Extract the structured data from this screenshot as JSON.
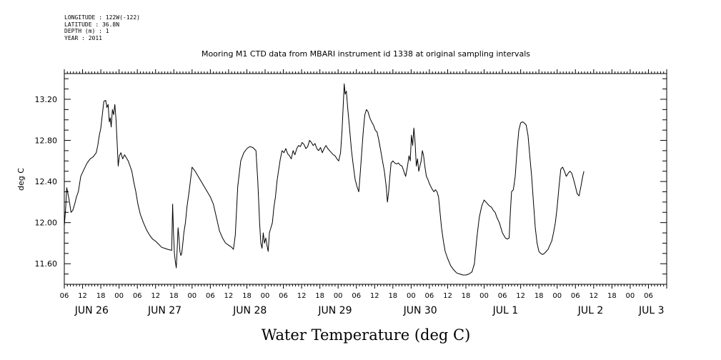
{
  "header": {
    "longitude": "LONGITUDE : 122W(-122)",
    "latitude": "LATITUDE : 36.8N",
    "depth": "DEPTH (m) : 1",
    "year": "YEAR : 2011"
  },
  "chart_data": {
    "type": "line",
    "title": "Mooring M1 CTD data from MBARI instrument id 1338 at original sampling intervals",
    "xlabel": "Water Temperature (deg C)",
    "ylabel": "deg C",
    "ylim": [
      11.4,
      13.45
    ],
    "xlim_hours": [
      0,
      198
    ],
    "x_unit": "hours since 06:00 JUN 26",
    "yticks": [
      11.6,
      12.0,
      12.4,
      12.8,
      13.2
    ],
    "ytick_labels": [
      "11.60",
      "12.00",
      "12.40",
      "12.80",
      "13.20"
    ],
    "hour_tick_labels": [
      "06",
      "12",
      "18",
      "00",
      "06",
      "12",
      "18",
      "00",
      "06",
      "12",
      "18",
      "00",
      "06",
      "12",
      "18",
      "00",
      "06",
      "12",
      "18",
      "00",
      "06",
      "12",
      "18",
      "00",
      "06",
      "12",
      "18",
      "00",
      "06",
      "12",
      "18",
      "00",
      "06"
    ],
    "day_labels": [
      {
        "label": "JUN 26",
        "hour": 9
      },
      {
        "label": "JUN 27",
        "hour": 33
      },
      {
        "label": "JUN 28",
        "hour": 61
      },
      {
        "label": "JUN 29",
        "hour": 89
      },
      {
        "label": "JUN 30",
        "hour": 117
      },
      {
        "label": "JUL  1",
        "hour": 145
      },
      {
        "label": "JUL  2",
        "hour": 173
      },
      {
        "label": "JUL  3",
        "hour": 193
      }
    ],
    "grid": false,
    "series": [
      {
        "color": "#000000",
        "points": [
          [
            0.0,
            11.97
          ],
          [
            0.4,
            12.12
          ],
          [
            0.8,
            12.34
          ],
          [
            1.2,
            12.28
          ],
          [
            1.6,
            12.22
          ],
          [
            2.2,
            12.1
          ],
          [
            2.8,
            12.12
          ],
          [
            3.4,
            12.18
          ],
          [
            4.0,
            12.25
          ],
          [
            4.6,
            12.3
          ],
          [
            5.4,
            12.45
          ],
          [
            6.5,
            12.52
          ],
          [
            7.5,
            12.58
          ],
          [
            8.5,
            12.62
          ],
          [
            9.5,
            12.64
          ],
          [
            10.5,
            12.68
          ],
          [
            11.0,
            12.75
          ],
          [
            11.5,
            12.85
          ],
          [
            12.0,
            12.92
          ],
          [
            12.5,
            13.05
          ],
          [
            13.0,
            13.18
          ],
          [
            13.6,
            13.19
          ],
          [
            14.0,
            13.12
          ],
          [
            14.4,
            13.15
          ],
          [
            14.8,
            12.98
          ],
          [
            15.1,
            13.02
          ],
          [
            15.4,
            12.93
          ],
          [
            15.8,
            13.1
          ],
          [
            16.2,
            13.05
          ],
          [
            16.6,
            13.15
          ],
          [
            17.0,
            13.0
          ],
          [
            17.4,
            12.75
          ],
          [
            17.7,
            12.55
          ],
          [
            18.1,
            12.65
          ],
          [
            18.6,
            12.68
          ],
          [
            19.2,
            12.62
          ],
          [
            19.8,
            12.66
          ],
          [
            20.4,
            12.63
          ],
          [
            21.0,
            12.6
          ],
          [
            21.6,
            12.55
          ],
          [
            22.2,
            12.5
          ],
          [
            22.8,
            12.4
          ],
          [
            23.5,
            12.3
          ],
          [
            24.2,
            12.18
          ],
          [
            25.0,
            12.08
          ],
          [
            26.0,
            12.0
          ],
          [
            27.0,
            11.93
          ],
          [
            28.0,
            11.88
          ],
          [
            29.0,
            11.84
          ],
          [
            30.0,
            11.82
          ],
          [
            31.0,
            11.79
          ],
          [
            32.0,
            11.76
          ],
          [
            33.0,
            11.75
          ],
          [
            34.0,
            11.74
          ],
          [
            35.3,
            11.73
          ],
          [
            35.6,
            12.18
          ],
          [
            35.9,
            11.9
          ],
          [
            36.2,
            11.7
          ],
          [
            36.5,
            11.62
          ],
          [
            36.8,
            11.56
          ],
          [
            37.1,
            11.75
          ],
          [
            37.4,
            11.95
          ],
          [
            37.7,
            11.85
          ],
          [
            38.0,
            11.72
          ],
          [
            38.3,
            11.68
          ],
          [
            38.6,
            11.7
          ],
          [
            38.9,
            11.78
          ],
          [
            39.3,
            11.9
          ],
          [
            39.8,
            12.0
          ],
          [
            40.3,
            12.15
          ],
          [
            41.0,
            12.3
          ],
          [
            42.0,
            12.54
          ],
          [
            43.0,
            12.5
          ],
          [
            44.0,
            12.45
          ],
          [
            45.0,
            12.4
          ],
          [
            46.0,
            12.35
          ],
          [
            47.0,
            12.3
          ],
          [
            48.0,
            12.25
          ],
          [
            49.0,
            12.18
          ],
          [
            50.0,
            12.05
          ],
          [
            51.0,
            11.92
          ],
          [
            52.0,
            11.85
          ],
          [
            53.0,
            11.8
          ],
          [
            54.0,
            11.78
          ],
          [
            55.0,
            11.76
          ],
          [
            55.6,
            11.74
          ],
          [
            56.2,
            11.88
          ],
          [
            57.0,
            12.35
          ],
          [
            58.0,
            12.6
          ],
          [
            59.0,
            12.68
          ],
          [
            60.0,
            12.72
          ],
          [
            61.0,
            12.74
          ],
          [
            62.0,
            12.73
          ],
          [
            63.0,
            12.7
          ],
          [
            63.6,
            12.4
          ],
          [
            64.2,
            12.0
          ],
          [
            64.6,
            11.8
          ],
          [
            65.0,
            11.75
          ],
          [
            65.4,
            11.9
          ],
          [
            65.8,
            11.8
          ],
          [
            66.2,
            11.85
          ],
          [
            66.6,
            11.78
          ],
          [
            67.0,
            11.72
          ],
          [
            67.4,
            11.9
          ],
          [
            67.9,
            11.95
          ],
          [
            68.4,
            12.0
          ],
          [
            68.9,
            12.15
          ],
          [
            69.4,
            12.25
          ],
          [
            69.9,
            12.4
          ],
          [
            70.4,
            12.5
          ],
          [
            71.0,
            12.62
          ],
          [
            71.6,
            12.7
          ],
          [
            72.2,
            12.68
          ],
          [
            72.8,
            12.72
          ],
          [
            73.4,
            12.67
          ],
          [
            74.0,
            12.65
          ],
          [
            74.6,
            12.62
          ],
          [
            75.2,
            12.7
          ],
          [
            75.8,
            12.66
          ],
          [
            76.4,
            12.72
          ],
          [
            77.0,
            12.75
          ],
          [
            77.6,
            12.74
          ],
          [
            78.2,
            12.78
          ],
          [
            78.8,
            12.76
          ],
          [
            79.4,
            12.72
          ],
          [
            80.0,
            12.74
          ],
          [
            80.6,
            12.8
          ],
          [
            81.2,
            12.78
          ],
          [
            81.8,
            12.75
          ],
          [
            82.4,
            12.77
          ],
          [
            83.0,
            12.72
          ],
          [
            83.6,
            12.7
          ],
          [
            84.2,
            12.73
          ],
          [
            84.8,
            12.68
          ],
          [
            85.4,
            12.72
          ],
          [
            86.0,
            12.75
          ],
          [
            86.6,
            12.72
          ],
          [
            87.2,
            12.7
          ],
          [
            87.8,
            12.68
          ],
          [
            88.4,
            12.66
          ],
          [
            89.0,
            12.65
          ],
          [
            89.6,
            12.62
          ],
          [
            90.2,
            12.6
          ],
          [
            90.8,
            12.68
          ],
          [
            91.3,
            12.9
          ],
          [
            91.7,
            13.15
          ],
          [
            92.0,
            13.35
          ],
          [
            92.3,
            13.25
          ],
          [
            92.7,
            13.28
          ],
          [
            93.2,
            13.1
          ],
          [
            93.8,
            12.9
          ],
          [
            94.4,
            12.7
          ],
          [
            95.0,
            12.55
          ],
          [
            95.6,
            12.42
          ],
          [
            96.2,
            12.35
          ],
          [
            96.8,
            12.3
          ],
          [
            97.2,
            12.45
          ],
          [
            97.8,
            12.7
          ],
          [
            98.3,
            12.9
          ],
          [
            98.8,
            13.05
          ],
          [
            99.3,
            13.1
          ],
          [
            99.8,
            13.08
          ],
          [
            100.4,
            13.02
          ],
          [
            101.0,
            12.98
          ],
          [
            101.6,
            12.95
          ],
          [
            102.2,
            12.9
          ],
          [
            102.8,
            12.88
          ],
          [
            103.4,
            12.8
          ],
          [
            104.0,
            12.7
          ],
          [
            104.6,
            12.6
          ],
          [
            105.2,
            12.5
          ],
          [
            105.8,
            12.35
          ],
          [
            106.2,
            12.2
          ],
          [
            106.6,
            12.3
          ],
          [
            107.0,
            12.45
          ],
          [
            107.4,
            12.58
          ],
          [
            108.0,
            12.6
          ],
          [
            108.6,
            12.58
          ],
          [
            109.2,
            12.57
          ],
          [
            109.8,
            12.58
          ],
          [
            110.4,
            12.56
          ],
          [
            111.0,
            12.55
          ],
          [
            111.6,
            12.5
          ],
          [
            112.2,
            12.45
          ],
          [
            112.8,
            12.55
          ],
          [
            113.3,
            12.65
          ],
          [
            113.7,
            12.6
          ],
          [
            114.1,
            12.85
          ],
          [
            114.5,
            12.75
          ],
          [
            114.9,
            12.92
          ],
          [
            115.3,
            12.78
          ],
          [
            115.7,
            12.55
          ],
          [
            116.1,
            12.62
          ],
          [
            116.5,
            12.5
          ],
          [
            116.9,
            12.55
          ],
          [
            117.3,
            12.6
          ],
          [
            117.7,
            12.7
          ],
          [
            118.1,
            12.65
          ],
          [
            118.5,
            12.55
          ],
          [
            119.0,
            12.45
          ],
          [
            119.5,
            12.42
          ],
          [
            120.0,
            12.38
          ],
          [
            120.5,
            12.35
          ],
          [
            121.0,
            12.32
          ],
          [
            121.5,
            12.3
          ],
          [
            122.0,
            12.32
          ],
          [
            122.5,
            12.3
          ],
          [
            123.0,
            12.25
          ],
          [
            123.5,
            12.1
          ],
          [
            124.0,
            11.95
          ],
          [
            124.6,
            11.82
          ],
          [
            125.2,
            11.72
          ],
          [
            126.0,
            11.65
          ],
          [
            127.0,
            11.58
          ],
          [
            128.0,
            11.54
          ],
          [
            129.0,
            11.51
          ],
          [
            130.0,
            11.5
          ],
          [
            131.0,
            11.49
          ],
          [
            132.0,
            11.49
          ],
          [
            133.0,
            11.5
          ],
          [
            134.0,
            11.52
          ],
          [
            134.8,
            11.6
          ],
          [
            135.6,
            11.85
          ],
          [
            136.4,
            12.05
          ],
          [
            137.2,
            12.16
          ],
          [
            138.0,
            12.22
          ],
          [
            138.6,
            12.2
          ],
          [
            139.2,
            12.18
          ],
          [
            139.8,
            12.16
          ],
          [
            140.4,
            12.15
          ],
          [
            141.0,
            12.12
          ],
          [
            141.6,
            12.1
          ],
          [
            142.2,
            12.05
          ],
          [
            143.0,
            12.0
          ],
          [
            144.0,
            11.9
          ],
          [
            145.0,
            11.85
          ],
          [
            145.6,
            11.84
          ],
          [
            146.2,
            11.85
          ],
          [
            146.6,
            12.1
          ],
          [
            147.0,
            12.3
          ],
          [
            147.6,
            12.32
          ],
          [
            148.2,
            12.45
          ],
          [
            148.8,
            12.7
          ],
          [
            149.4,
            12.9
          ],
          [
            150.0,
            12.97
          ],
          [
            150.6,
            12.98
          ],
          [
            151.2,
            12.97
          ],
          [
            151.8,
            12.95
          ],
          [
            152.4,
            12.85
          ],
          [
            153.0,
            12.65
          ],
          [
            153.6,
            12.45
          ],
          [
            154.2,
            12.2
          ],
          [
            154.8,
            11.95
          ],
          [
            155.4,
            11.8
          ],
          [
            156.0,
            11.72
          ],
          [
            156.6,
            11.7
          ],
          [
            157.2,
            11.69
          ],
          [
            157.8,
            11.7
          ],
          [
            158.4,
            11.72
          ],
          [
            159.0,
            11.74
          ],
          [
            159.6,
            11.78
          ],
          [
            160.2,
            11.82
          ],
          [
            160.8,
            11.9
          ],
          [
            161.4,
            12.0
          ],
          [
            162.0,
            12.15
          ],
          [
            162.6,
            12.35
          ],
          [
            163.2,
            12.52
          ],
          [
            163.8,
            12.54
          ],
          [
            164.4,
            12.5
          ],
          [
            165.0,
            12.45
          ],
          [
            165.6,
            12.48
          ],
          [
            166.2,
            12.5
          ],
          [
            166.8,
            12.48
          ],
          [
            167.4,
            12.42
          ],
          [
            168.0,
            12.35
          ],
          [
            168.6,
            12.28
          ],
          [
            169.2,
            12.26
          ],
          [
            169.8,
            12.35
          ],
          [
            170.4,
            12.45
          ],
          [
            170.8,
            12.5
          ]
        ]
      }
    ]
  }
}
